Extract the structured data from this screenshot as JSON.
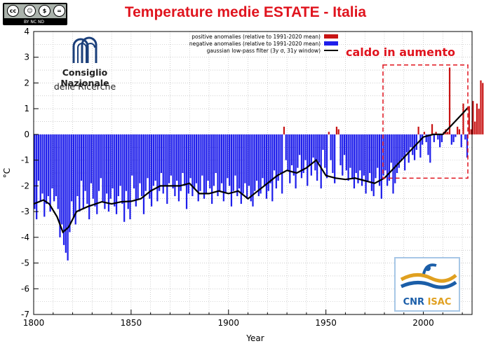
{
  "title": "Temperature medie ESTATE - Italia",
  "license": {
    "text": "BY  NC  ND",
    "icons": [
      "cc-icon",
      "by-icon",
      "nc-icon",
      "nd-icon"
    ]
  },
  "logo_cnr": {
    "line1": "Consiglio Nazionale",
    "line2": "delle Ricerche"
  },
  "logo_isac": {
    "part1": "CNR",
    "part2": "ISAC"
  },
  "annotation": "caldo in aumento",
  "colors": {
    "positive": "#c81414",
    "negative": "#1e1eeb",
    "filter": "#000000",
    "title": "#e0141e",
    "annotation": "#e0141e",
    "highlight_box": "#e0141e"
  },
  "chart_data": {
    "type": "bar",
    "title": "Temperature medie ESTATE - Italia",
    "xlabel": "Year",
    "ylabel": "°C",
    "xlim": [
      1800,
      2025
    ],
    "ylim": [
      -7,
      4
    ],
    "x_ticks": [
      1800,
      1850,
      1900,
      1950,
      2000
    ],
    "y_ticks": [
      -7,
      -6,
      -5,
      -4,
      -3,
      -2,
      -1,
      0,
      1,
      2,
      3,
      4
    ],
    "grid": true,
    "legend": {
      "placement": "top-right",
      "entries": [
        {
          "label": "positive anomalies (relative to 1991-2020 mean)",
          "color": "#c81414",
          "kind": "bar"
        },
        {
          "label": "negative anomalies (relative to 1991-2020 mean)",
          "color": "#1e1eeb",
          "kind": "bar"
        },
        {
          "label": "gaussian low-pass filter (3y σ, 31y window)",
          "color": "#000000",
          "kind": "line"
        }
      ]
    },
    "highlight_region": {
      "x": [
        1980,
        2025
      ],
      "y": [
        -1.7,
        2.7
      ],
      "label": "caldo in aumento"
    },
    "years": [
      1800,
      2023
    ],
    "values": [
      -2.9,
      -3.3,
      -1.8,
      -2.6,
      -2.3,
      -3.2,
      -2.7,
      -2.4,
      -3.0,
      -2.1,
      -2.6,
      -2.4,
      -2.9,
      -4.0,
      -3.5,
      -4.3,
      -4.6,
      -4.9,
      -3.8,
      -2.6,
      -3.2,
      -3.5,
      -2.4,
      -3.0,
      -1.8,
      -2.9,
      -2.2,
      -2.7,
      -3.3,
      -1.9,
      -2.5,
      -2.8,
      -3.1,
      -2.2,
      -1.7,
      -2.6,
      -2.9,
      -2.3,
      -3.0,
      -2.5,
      -2.1,
      -2.8,
      -3.1,
      -2.4,
      -2.0,
      -2.7,
      -3.4,
      -2.2,
      -2.9,
      -3.3,
      -1.6,
      -2.1,
      -2.8,
      -2.5,
      -1.9,
      -2.4,
      -3.1,
      -2.2,
      -1.7,
      -2.5,
      -2.8,
      -2.0,
      -1.8,
      -2.6,
      -2.2,
      -1.5,
      -2.3,
      -2.0,
      -2.7,
      -1.9,
      -1.6,
      -2.1,
      -2.4,
      -1.8,
      -2.6,
      -2.2,
      -1.5,
      -2.0,
      -2.9,
      -2.3,
      -1.7,
      -2.4,
      -2.1,
      -1.9,
      -2.6,
      -2.2,
      -1.6,
      -2.5,
      -2.3,
      -1.8,
      -2.1,
      -2.7,
      -2.0,
      -1.5,
      -2.4,
      -2.2,
      -1.9,
      -2.6,
      -2.3,
      -1.7,
      -2.0,
      -2.8,
      -2.2,
      -1.6,
      -2.4,
      -2.1,
      -2.7,
      -2.3,
      -1.9,
      -2.5,
      -2.0,
      -2.6,
      -2.8,
      -2.2,
      -1.8,
      -2.4,
      -2.3,
      -1.7,
      -2.0,
      -2.5,
      -2.2,
      -1.9,
      -2.6,
      -1.4,
      -2.1,
      -1.8,
      -1.5,
      -2.3,
      0.3,
      -1.0,
      -1.4,
      -1.9,
      -1.2,
      -1.6,
      -2.1,
      -1.3,
      -0.8,
      -1.7,
      -1.5,
      -1.0,
      -2.0,
      -1.2,
      -1.6,
      -0.9,
      -1.4,
      -1.8,
      -1.1,
      -2.1,
      -0.6,
      -1.3,
      -1.7,
      0.1,
      -1.0,
      -1.5,
      -1.9,
      0.3,
      0.2,
      -1.2,
      -1.6,
      -0.8,
      -1.4,
      -1.8,
      -1.3,
      -1.7,
      -2.1,
      -1.5,
      -1.9,
      -1.4,
      -2.0,
      -1.6,
      -2.3,
      -1.8,
      -1.5,
      -2.2,
      -2.4,
      -1.7,
      -1.3,
      -2.0,
      -2.5,
      -1.6,
      -1.4,
      -2.0,
      -1.8,
      -1.1,
      -2.3,
      -1.9,
      -1.5,
      -1.3,
      -1.0,
      -0.9,
      -1.4,
      -0.7,
      -1.1,
      -0.5,
      -0.8,
      -1.0,
      -0.6,
      0.3,
      -0.9,
      -0.4,
      0.1,
      -0.3,
      -0.8,
      -1.1,
      0.4,
      -0.3,
      0.1,
      -0.2,
      -0.5,
      -0.3,
      0.1,
      0.2,
      0.1,
      2.6,
      -0.4,
      -0.3,
      -0.1,
      0.3,
      0.2,
      -0.5,
      1.2,
      -0.2,
      -0.9,
      1.1,
      0.2,
      1.3,
      0.5,
      1.2,
      1.0,
      2.1,
      2.0
    ],
    "filter": [
      {
        "x": 1800,
        "y": -2.7
      },
      {
        "x": 1805,
        "y": -2.55
      },
      {
        "x": 1808,
        "y": -2.7
      },
      {
        "x": 1812,
        "y": -3.2
      },
      {
        "x": 1815,
        "y": -3.8
      },
      {
        "x": 1818,
        "y": -3.6
      },
      {
        "x": 1822,
        "y": -3.0
      },
      {
        "x": 1828,
        "y": -2.8
      },
      {
        "x": 1835,
        "y": -2.62
      },
      {
        "x": 1840,
        "y": -2.7
      },
      {
        "x": 1845,
        "y": -2.62
      },
      {
        "x": 1850,
        "y": -2.6
      },
      {
        "x": 1855,
        "y": -2.5
      },
      {
        "x": 1860,
        "y": -2.2
      },
      {
        "x": 1865,
        "y": -2.0
      },
      {
        "x": 1870,
        "y": -2.0
      },
      {
        "x": 1875,
        "y": -2.0
      },
      {
        "x": 1880,
        "y": -1.9
      },
      {
        "x": 1885,
        "y": -2.3
      },
      {
        "x": 1890,
        "y": -2.3
      },
      {
        "x": 1895,
        "y": -2.2
      },
      {
        "x": 1900,
        "y": -2.3
      },
      {
        "x": 1905,
        "y": -2.2
      },
      {
        "x": 1910,
        "y": -2.5
      },
      {
        "x": 1915,
        "y": -2.2
      },
      {
        "x": 1920,
        "y": -1.9
      },
      {
        "x": 1925,
        "y": -1.6
      },
      {
        "x": 1930,
        "y": -1.4
      },
      {
        "x": 1935,
        "y": -1.5
      },
      {
        "x": 1940,
        "y": -1.3
      },
      {
        "x": 1945,
        "y": -1.0
      },
      {
        "x": 1950,
        "y": -1.6
      },
      {
        "x": 1955,
        "y": -1.7
      },
      {
        "x": 1960,
        "y": -1.75
      },
      {
        "x": 1965,
        "y": -1.7
      },
      {
        "x": 1970,
        "y": -1.8
      },
      {
        "x": 1975,
        "y": -1.9
      },
      {
        "x": 1980,
        "y": -1.7
      },
      {
        "x": 1985,
        "y": -1.3
      },
      {
        "x": 1990,
        "y": -0.9
      },
      {
        "x": 1995,
        "y": -0.5
      },
      {
        "x": 2000,
        "y": -0.1
      },
      {
        "x": 2005,
        "y": 0.0
      },
      {
        "x": 2010,
        "y": 0.0
      },
      {
        "x": 2015,
        "y": 0.4
      },
      {
        "x": 2020,
        "y": 0.8
      },
      {
        "x": 2023,
        "y": 1.05
      }
    ]
  }
}
